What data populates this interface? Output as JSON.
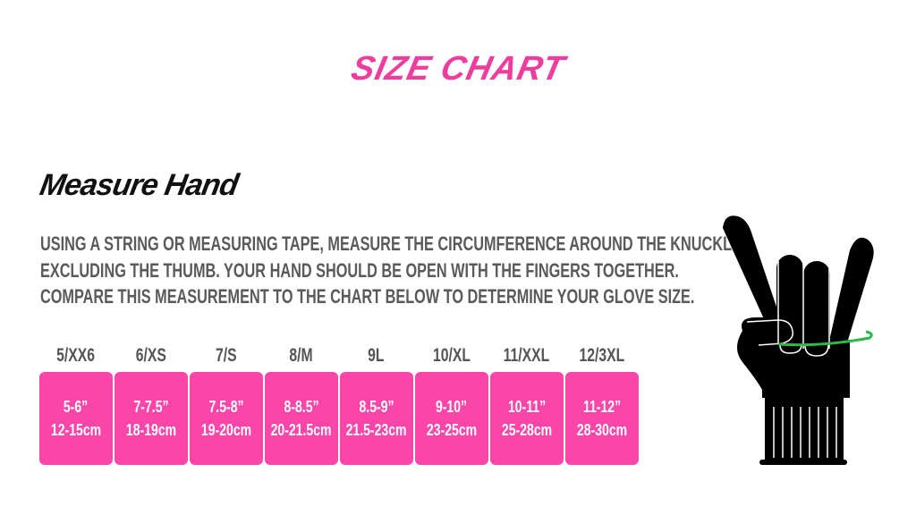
{
  "title": "SIZE CHART",
  "subtitle": "Measure Hand",
  "instructions": [
    "Using a string or measuring tape, measure the circumference around the knuckles,",
    "excluding the thumb. Your hand should be open with the fingers together.",
    "Compare this measurement to the chart below to determine your glove size."
  ],
  "sizes": [
    {
      "label": "5/XX6",
      "inches": "5-6”",
      "cm": "12-15cm"
    },
    {
      "label": "6/XS",
      "inches": "7-7.5”",
      "cm": "18-19cm"
    },
    {
      "label": "7/S",
      "inches": "7.5-8”",
      "cm": "19-20cm"
    },
    {
      "label": "8/M",
      "inches": "8-8.5”",
      "cm": "20-21.5cm"
    },
    {
      "label": "9L",
      "inches": "8.5-9”",
      "cm": "21.5-23cm"
    },
    {
      "label": "10/XL",
      "inches": "9-10”",
      "cm": "23-25cm"
    },
    {
      "label": "11/XXL",
      "inches": "10-11”",
      "cm": "25-28cm"
    },
    {
      "label": "12/3XL",
      "inches": "11-12”",
      "cm": "28-30cm"
    }
  ],
  "colors": {
    "accent": "#fb46a9",
    "title": "#ee3d9c",
    "measure_line": "#2db84a"
  },
  "illustration": "glove-hand-icon"
}
